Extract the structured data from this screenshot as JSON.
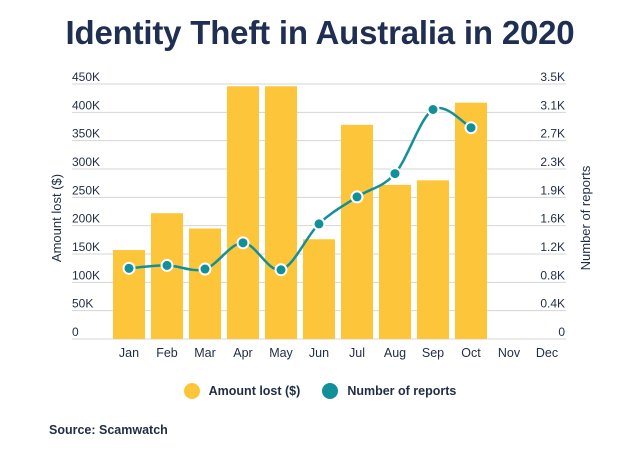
{
  "title": "Identity Theft in Australia in 2020",
  "source": "Source: Scamwatch",
  "colors": {
    "bar": "#fcc53a",
    "line": "#12909a",
    "text": "#1f2d46",
    "title": "#1e2f52",
    "grid": "#d4d4d4"
  },
  "legend": {
    "bar_label": "Amount lost ($)",
    "line_label": "Number of reports"
  },
  "chart_data": {
    "type": "bar+line",
    "categories": [
      "Jan",
      "Feb",
      "Mar",
      "Apr",
      "May",
      "Jun",
      "Jul",
      "Aug",
      "Sep",
      "Oct",
      "Nov",
      "Dec"
    ],
    "series": [
      {
        "name": "Amount lost ($)",
        "type": "bar",
        "axis": "left",
        "values": [
          157000,
          222000,
          195000,
          446000,
          446000,
          176000,
          378000,
          272000,
          280000,
          417000,
          null,
          null
        ]
      },
      {
        "name": "Number of reports",
        "type": "line",
        "axis": "right",
        "values": [
          970,
          1010,
          960,
          1320,
          950,
          1580,
          1950,
          2270,
          3150,
          2900,
          null,
          null
        ]
      }
    ],
    "ylabel": "Amount lost ($)",
    "y2label": "Number of reports",
    "ylim": [
      0,
      450000
    ],
    "y2lim": [
      0,
      3500
    ],
    "yticks": [
      "0",
      "50K",
      "100K",
      "150K",
      "200K",
      "250K",
      "300K",
      "350K",
      "400K",
      "450K"
    ],
    "y2ticks": [
      "0",
      "0.4K",
      "0.8K",
      "1.2K",
      "1.6K",
      "1.9K",
      "2.3K",
      "2.7K",
      "3.1K",
      "3.5K"
    ],
    "grid": true,
    "legend_position": "bottom"
  }
}
